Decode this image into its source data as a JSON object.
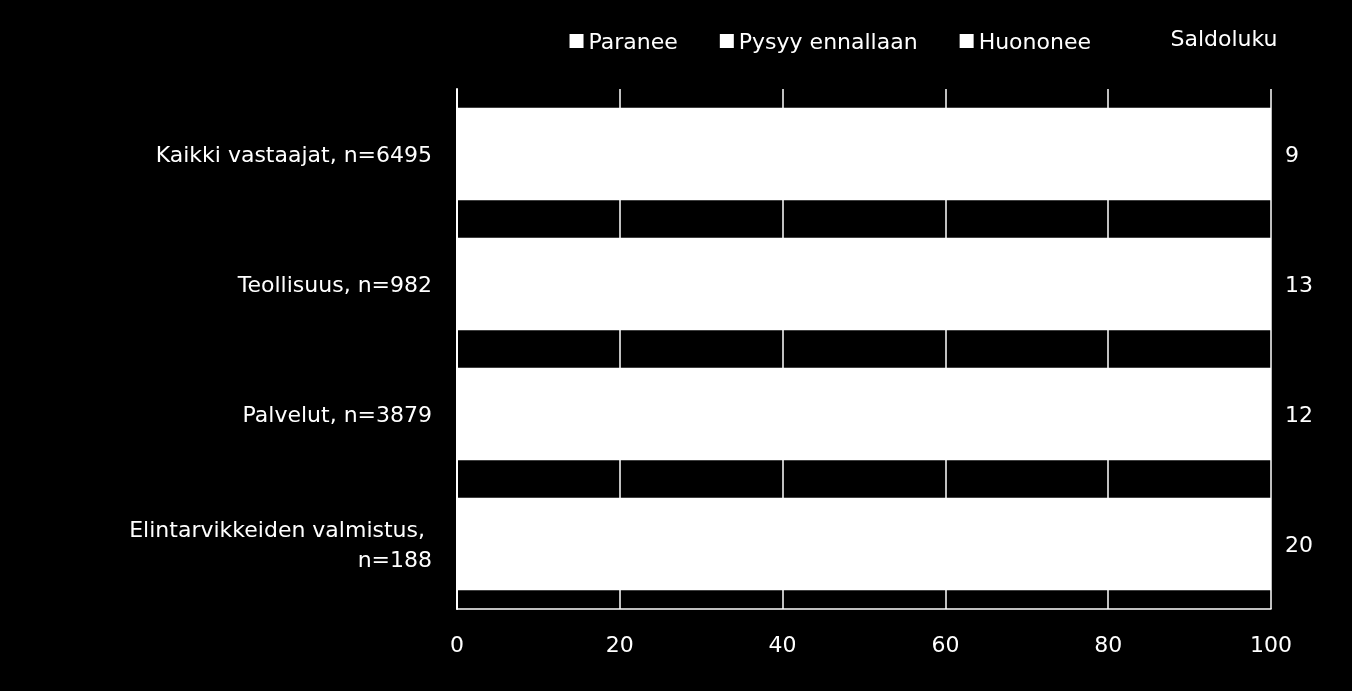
{
  "chart_data": {
    "type": "bar",
    "orientation": "horizontal",
    "stacked": true,
    "categories": [
      "Kaikki vastaajat, n=6495",
      "Teollisuus, n=982",
      "Palvelut, n=3879",
      "Elintarvikkeiden valmistus, n=188"
    ],
    "series": [
      {
        "name": "Paranee",
        "color": "#ffffff",
        "values": [
          null,
          null,
          null,
          null
        ]
      },
      {
        "name": "Pysyy ennallaan",
        "color": "#ffffff",
        "values": [
          null,
          null,
          null,
          null
        ]
      },
      {
        "name": "Huononee",
        "color": "#ffffff",
        "values": [
          null,
          null,
          null,
          null
        ]
      },
      {
        "color": "#ffffff",
        "values": [
          100,
          100,
          100,
          100
        ]
      }
    ],
    "y2_categories": [
      "9",
      "13",
      "12",
      "20"
    ],
    "y2label": "Saldoluku",
    "xlim": [
      0,
      100
    ],
    "xticks": [
      0,
      20,
      40,
      60,
      80,
      100
    ],
    "grid": "x",
    "legend": "top right"
  }
}
